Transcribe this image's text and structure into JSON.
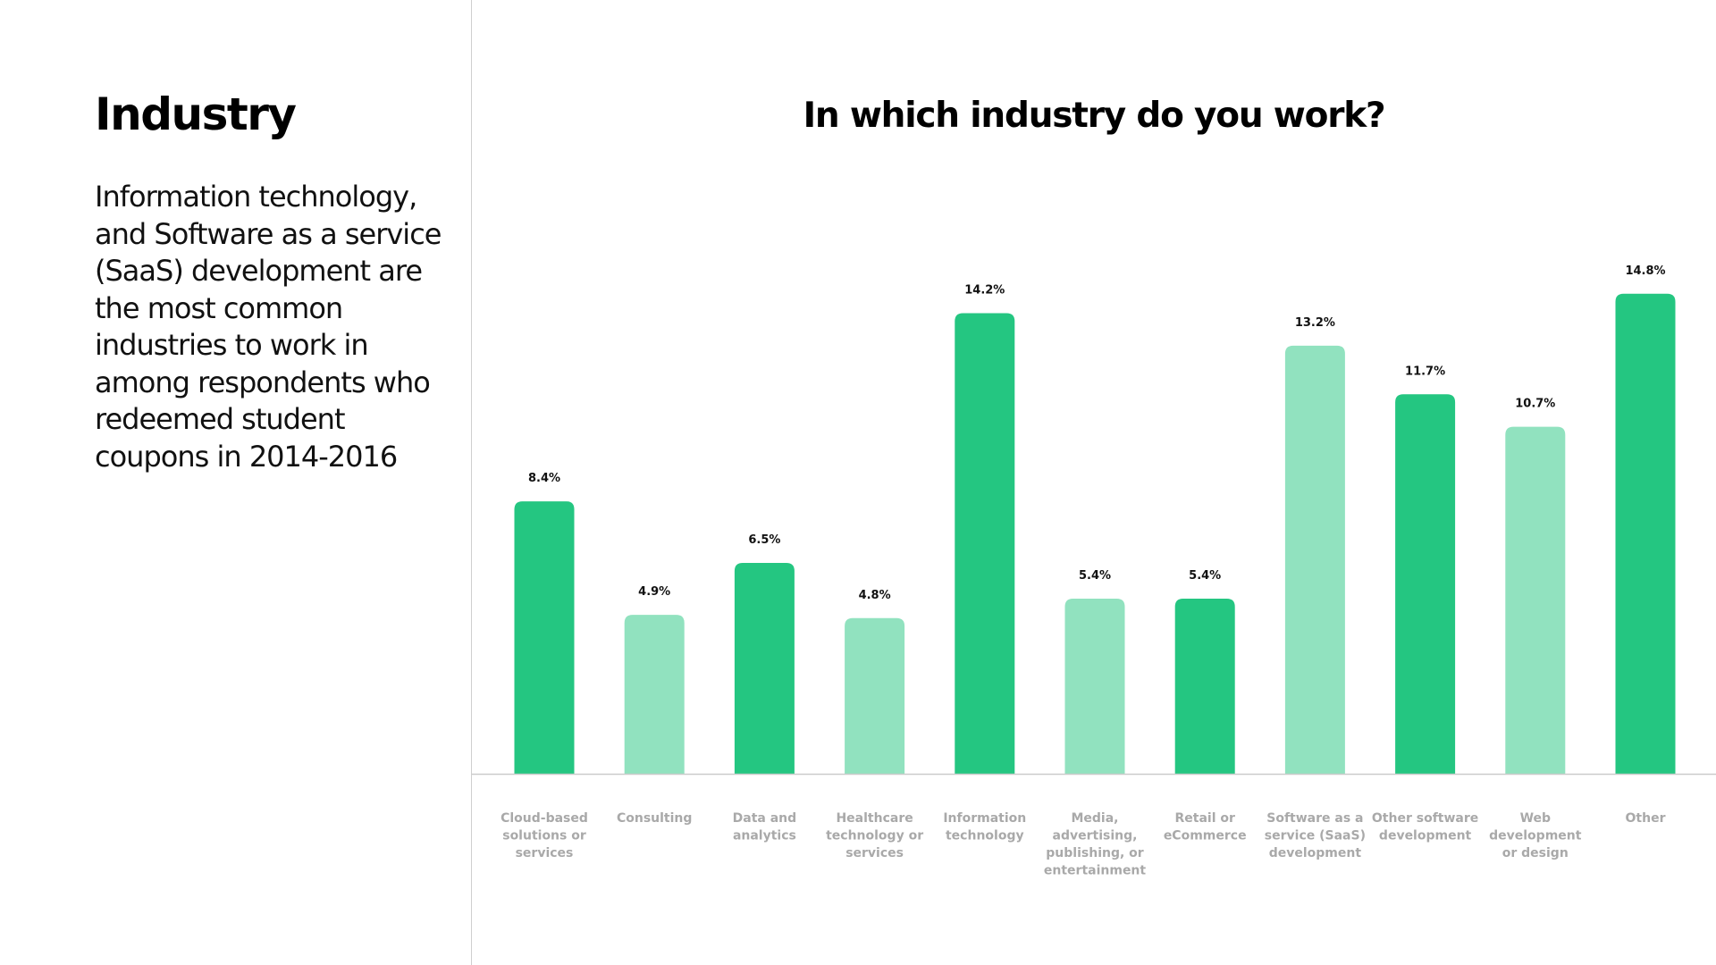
{
  "sidebar": {
    "title": "Industry",
    "summary": "Information technology, and Software as a service (SaaS) development are the most common industries to work in among respondents who redeemed student coupons in 2014-2016"
  },
  "colors": {
    "dark_bar": "#24c681",
    "light_bar": "#91e2bf",
    "axis": "#cccccc",
    "category_text": "#a9a9a9"
  },
  "chart_data": {
    "type": "bar",
    "title": "In which industry do you work?",
    "xlabel": "",
    "ylabel": "",
    "grid": false,
    "legend": "none",
    "ylim": [
      0,
      15
    ],
    "categories": [
      "Cloud-based solutions or services",
      "Consulting",
      "Data and analytics",
      "Healthcare technology or services",
      "Information technology",
      "Media, advertising, publishing, or entertainment",
      "Retail or eCommerce",
      "Software as a service (SaaS) development",
      "Other software development",
      "Web development or design",
      "Other"
    ],
    "category_lines": [
      [
        "Cloud-based",
        "solutions or",
        "services"
      ],
      [
        "Consulting"
      ],
      [
        "Data and",
        "analytics"
      ],
      [
        "Healthcare",
        "technology or",
        "services"
      ],
      [
        "Information",
        "technology"
      ],
      [
        "Media,",
        "advertising,",
        "publishing, or",
        "entertainment"
      ],
      [
        "Retail or",
        "eCommerce"
      ],
      [
        "Software as a",
        "service (SaaS)",
        "development"
      ],
      [
        "Other software",
        "development"
      ],
      [
        "Web",
        "development",
        "or design"
      ],
      [
        "Other"
      ]
    ],
    "values": [
      8.4,
      4.9,
      6.5,
      4.8,
      14.2,
      5.4,
      5.4,
      13.2,
      11.7,
      10.7,
      14.8
    ],
    "value_labels": [
      "8.4%",
      "4.9%",
      "6.5%",
      "4.8%",
      "14.2%",
      "5.4%",
      "5.4%",
      "13.2%",
      "11.7%",
      "10.7%",
      "14.8%"
    ],
    "bar_shades": [
      "dark",
      "light",
      "dark",
      "light",
      "dark",
      "light",
      "dark",
      "light",
      "dark",
      "light",
      "dark"
    ]
  }
}
